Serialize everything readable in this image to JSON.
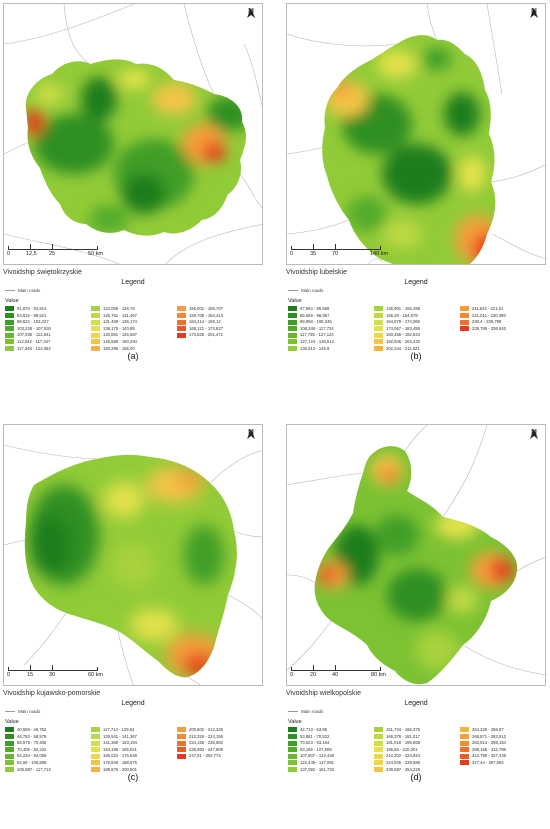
{
  "panels": [
    {
      "id": "a",
      "voivodship": "Vivoidship świętokrzyskie",
      "scale_labels": [
        "0",
        "12,5",
        "25",
        "50 km"
      ],
      "legend_title": "Legend",
      "main_roads_label": "Main roads",
      "value_label": "Value",
      "caption": "(a)",
      "legend_entries": [
        {
          "range": "91,670 - 93,814",
          "color": "#1e7d1e"
        },
        {
          "range": "93,815 - 98,521",
          "color": "#2e8f22"
        },
        {
          "range": "98,522 - 103,227",
          "color": "#3f9e27"
        },
        {
          "range": "103,228 - 107,934",
          "color": "#52ab2b"
        },
        {
          "range": "107,935 - 112,641",
          "color": "#67b72f"
        },
        {
          "range": "112,642 - 117,347",
          "color": "#7cc233"
        },
        {
          "range": "117,348 - 122,054",
          "color": "#92cb38"
        },
        {
          "range": "122,055 - 126,76",
          "color": "#a8d23e"
        },
        {
          "range": "126,761 - 131,467",
          "color": "#bdd943"
        },
        {
          "range": "131,468 - 136,174",
          "color": "#d1df48"
        },
        {
          "range": "136,175 - 140,88",
          "color": "#e3e24c"
        },
        {
          "range": "140,881 - 145,587",
          "color": "#efd64a"
        },
        {
          "range": "145,588 - 150,294",
          "color": "#f3c546"
        },
        {
          "range": "150,295 - 155,00",
          "color": "#f5b241"
        },
        {
          "range": "155,001 - 159,707",
          "color": "#f59e3b"
        },
        {
          "range": "159,708 - 164,413",
          "color": "#f38835"
        },
        {
          "range": "164,414 - 169,12",
          "color": "#f0712f"
        },
        {
          "range": "169,121 - 173,827",
          "color": "#ec5928"
        },
        {
          "range": "173,828 - 201,471",
          "color": "#e43c1f"
        }
      ]
    },
    {
      "id": "b",
      "voivodship": "Vivoidship lubelskie",
      "scale_labels": [
        "0",
        "35",
        "70",
        "140 km"
      ],
      "legend_title": "Legend",
      "main_roads_label": "Main roads",
      "value_label": "Value",
      "caption": "(b)",
      "legend_entries": [
        {
          "range": "67,664 - 85,568",
          "color": "#1e7d1e"
        },
        {
          "range": "85,569 - 98,957",
          "color": "#2e8f22"
        },
        {
          "range": "98,958 - 108,345",
          "color": "#3f9e27"
        },
        {
          "range": "108,346 - 117,734",
          "color": "#52ab2b"
        },
        {
          "range": "117,735 - 127,123",
          "color": "#67b72f"
        },
        {
          "range": "127,124 - 136,512",
          "color": "#7cc233"
        },
        {
          "range": "136,513 - 145,9",
          "color": "#92cb38"
        },
        {
          "range": "145,901 - 155,289",
          "color": "#a8d23e"
        },
        {
          "range": "155,29 - 164,678",
          "color": "#bdd943"
        },
        {
          "range": "164,679 - 174,066",
          "color": "#d1df48"
        },
        {
          "range": "174,067 - 183,455",
          "color": "#e3e24c"
        },
        {
          "range": "183,456 - 192,844",
          "color": "#efd64a"
        },
        {
          "range": "192,845 - 202,233",
          "color": "#f3c546"
        },
        {
          "range": "202,234 - 211,621",
          "color": "#f5b241"
        },
        {
          "range": "211,622 - 221,01",
          "color": "#f59e3b"
        },
        {
          "range": "221,011 - 230,399",
          "color": "#f38835"
        },
        {
          "range": "230,4 - 239,788",
          "color": "#f0712f"
        },
        {
          "range": "239,789 - 336,942",
          "color": "#e43c1f"
        }
      ]
    },
    {
      "id": "c",
      "voivodship": "Vivoidship kujawsko-pomorskie",
      "scale_labels": [
        "0",
        "15",
        "30",
        "60 km"
      ],
      "legend_title": "Legend",
      "main_roads_label": "Main roads",
      "value_label": "Value",
      "caption": "(c)",
      "legend_entries": [
        {
          "range": "40,559 - 46,752",
          "color": "#1e7d1e"
        },
        {
          "range": "46,753 - 58,578",
          "color": "#2e8f22"
        },
        {
          "range": "58,579 - 70,405",
          "color": "#3f9e27"
        },
        {
          "range": "70,406 - 82,232",
          "color": "#52ab2b"
        },
        {
          "range": "82,233 - 94,059",
          "color": "#67b72f"
        },
        {
          "range": "94,06 - 105,886",
          "color": "#7cc233"
        },
        {
          "range": "105,887 - 117,713",
          "color": "#92cb38"
        },
        {
          "range": "117,714 - 129,54",
          "color": "#a8d23e"
        },
        {
          "range": "129,541 - 141,367",
          "color": "#bdd943"
        },
        {
          "range": "141,368 - 153,194",
          "color": "#d1df48"
        },
        {
          "range": "153,195 - 165,021",
          "color": "#e3e24c"
        },
        {
          "range": "165,022 - 176,848",
          "color": "#efd64a"
        },
        {
          "range": "176,849 - 188,675",
          "color": "#f3c546"
        },
        {
          "range": "188,676 - 200,501",
          "color": "#f5b241"
        },
        {
          "range": "200,502 - 212,328",
          "color": "#f59e3b"
        },
        {
          "range": "212,329 - 224,155",
          "color": "#f38835"
        },
        {
          "range": "224,156 - 235,982",
          "color": "#f0712f"
        },
        {
          "range": "235,983 - 247,809",
          "color": "#ec5928"
        },
        {
          "range": "247,81 - 302,774",
          "color": "#e43c1f"
        }
      ]
    },
    {
      "id": "d",
      "voivodship": "Vivoidship wielkopolskie",
      "scale_labels": [
        "0",
        "20",
        "40",
        "80 km"
      ],
      "legend_title": "Legend",
      "main_roads_label": "Main roads",
      "value_label": "Value",
      "caption": "(d)",
      "legend_entries": [
        {
          "range": "42,713 - 53,88",
          "color": "#1e7d1e"
        },
        {
          "range": "53,881 - 70,522",
          "color": "#2e8f22"
        },
        {
          "range": "70,523 - 93,164",
          "color": "#3f9e27"
        },
        {
          "range": "93,165 - 107,806",
          "color": "#52ab2b"
        },
        {
          "range": "107,807 - 122,448",
          "color": "#67b72f"
        },
        {
          "range": "122,449 - 137,091",
          "color": "#7cc233"
        },
        {
          "range": "137,092 - 151,733",
          "color": "#92cb38"
        },
        {
          "range": "151,734 - 166,375",
          "color": "#a8d23e"
        },
        {
          "range": "166,376 - 181,017",
          "color": "#bdd943"
        },
        {
          "range": "181,018 - 195,659",
          "color": "#d1df48"
        },
        {
          "range": "195,66 - 210,301",
          "color": "#e3e24c"
        },
        {
          "range": "210,302 - 224,944",
          "color": "#efd64a"
        },
        {
          "range": "224,945 - 239,586",
          "color": "#efd64a"
        },
        {
          "range": "239,587 - 254,228",
          "color": "#f3c546"
        },
        {
          "range": "254,229 - 268,87",
          "color": "#f5b241"
        },
        {
          "range": "268,871 - 283,512",
          "color": "#f59e3b"
        },
        {
          "range": "283,513 - 298,154",
          "color": "#f38835"
        },
        {
          "range": "298,155 - 312,795",
          "color": "#f0712f"
        },
        {
          "range": "312,796 - 327,439",
          "color": "#ec5928"
        },
        {
          "range": "327,44 - 357,064",
          "color": "#e43c1f"
        }
      ]
    }
  ],
  "north_label": "N"
}
